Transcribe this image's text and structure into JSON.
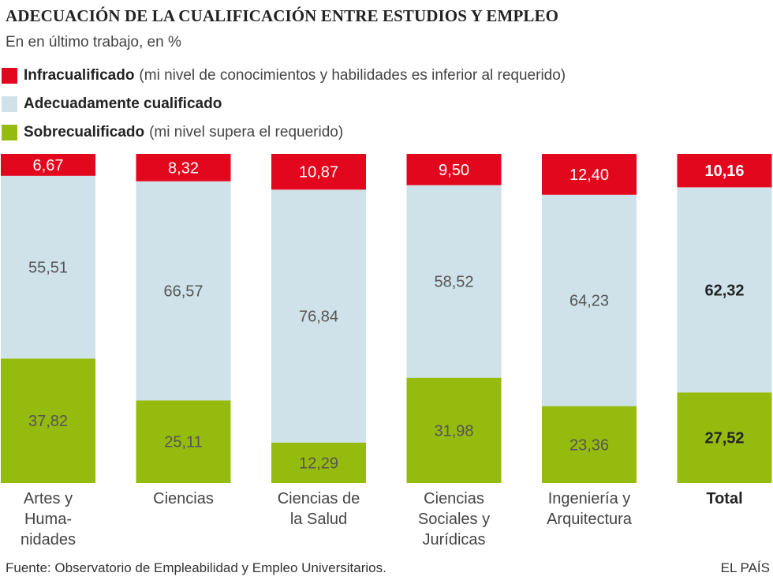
{
  "header": {
    "title": "ADECUACIÓN DE LA CUALIFICACIÓN ENTRE ESTUDIOS Y EMPLEO",
    "subtitle": "En en último trabajo, en %"
  },
  "legend": [
    {
      "name": "Infracualificado",
      "desc": "(mi nivel de conocimientos y habilidades es inferior al requerido)",
      "color": "#e2071d"
    },
    {
      "name": "Adecuadamente cualificado",
      "desc": "",
      "color": "#cfe2ea"
    },
    {
      "name": "Sobrecualificado",
      "desc": "(mi nivel supera el requerido)",
      "color": "#96bb0f"
    }
  ],
  "chart_data": {
    "type": "bar",
    "stacked": true,
    "orientation": "vertical",
    "ylim": [
      0,
      100
    ],
    "categories": [
      [
        "Artes y",
        "Huma-",
        "nidades"
      ],
      [
        "Ciencias"
      ],
      [
        "Ciencias de",
        "la Salud"
      ],
      [
        "Ciencias",
        "Sociales y",
        "Jurídicas"
      ],
      [
        "Ingeniería y",
        "Arquitectura"
      ],
      [
        "Total"
      ]
    ],
    "highlight_category": 5,
    "series": [
      {
        "name": "Sobrecualificado",
        "color": "#96bb0f",
        "values": [
          37.82,
          25.11,
          12.29,
          31.98,
          23.36,
          27.52
        ],
        "labels": [
          "37,82",
          "25,11",
          "12,29",
          "31,98",
          "23,36",
          "27,52"
        ]
      },
      {
        "name": "Adecuadamente cualificado",
        "color": "#cfe2ea",
        "values": [
          55.51,
          66.57,
          76.84,
          58.52,
          64.23,
          62.32
        ],
        "labels": [
          "55,51",
          "66,57",
          "76,84",
          "58,52",
          "64,23",
          "62,32"
        ]
      },
      {
        "name": "Infracualificado",
        "color": "#e2071d",
        "values": [
          6.67,
          8.32,
          10.87,
          9.5,
          12.4,
          10.16
        ],
        "labels": [
          "6,67",
          "8,32",
          "10,87",
          "9,50",
          "12,40",
          "10,16"
        ]
      }
    ]
  },
  "footer": {
    "source": "Fuente: Observatorio de Empleabilidad y Empleo Universitarios.",
    "credit": "EL PAÍS"
  }
}
